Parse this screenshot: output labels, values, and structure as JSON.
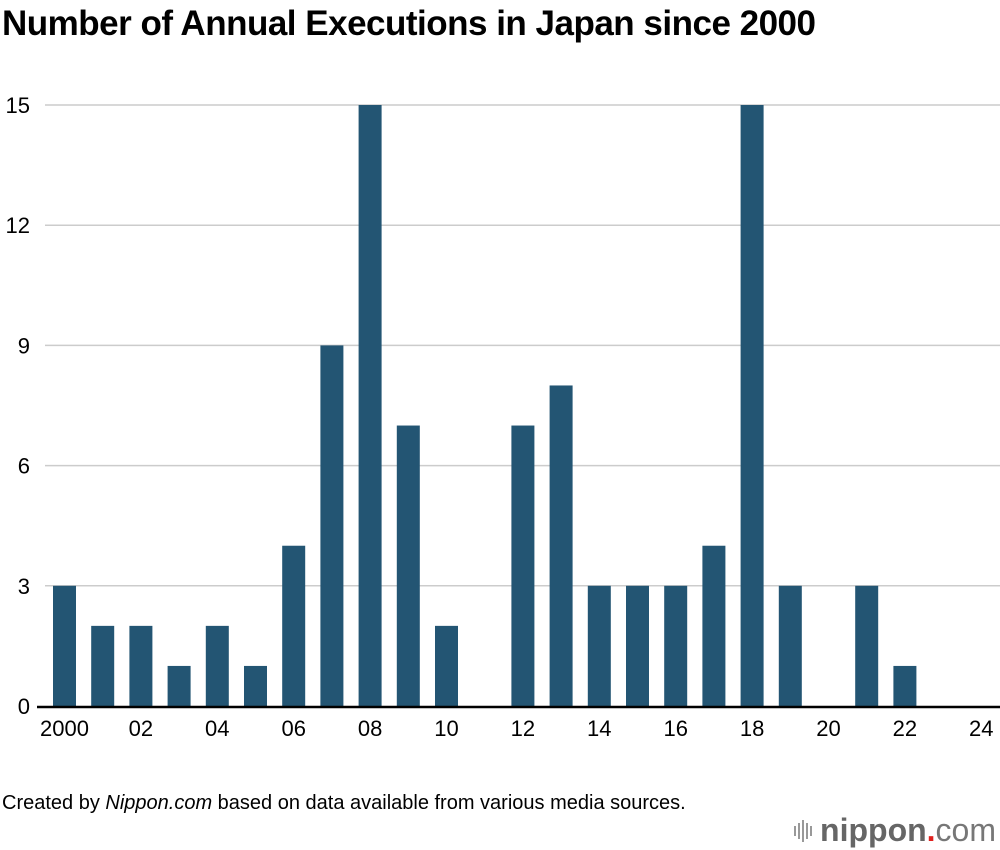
{
  "chart_data": {
    "type": "bar",
    "title": "Number of Annual Executions in Japan since 2000",
    "xlabel": "",
    "ylabel": "",
    "categories": [
      "2000",
      "2001",
      "2002",
      "2003",
      "2004",
      "2005",
      "2006",
      "2007",
      "2008",
      "2009",
      "2010",
      "2011",
      "2012",
      "2013",
      "2014",
      "2015",
      "2016",
      "2017",
      "2018",
      "2019",
      "2020",
      "2021",
      "2022",
      "2023",
      "2024"
    ],
    "values": [
      3,
      2,
      2,
      1,
      2,
      1,
      4,
      9,
      15,
      7,
      2,
      0,
      7,
      8,
      3,
      3,
      3,
      4,
      15,
      3,
      0,
      3,
      1,
      0,
      0
    ],
    "x_tick_labels": [
      "2000",
      "02",
      "04",
      "06",
      "08",
      "10",
      "12",
      "14",
      "16",
      "18",
      "20",
      "22",
      "24"
    ],
    "x_tick_indices": [
      0,
      2,
      4,
      6,
      8,
      10,
      12,
      14,
      16,
      18,
      20,
      22,
      24
    ],
    "y_ticks": [
      0,
      3,
      6,
      9,
      12,
      15
    ],
    "ylim": [
      0,
      15
    ],
    "grid": true,
    "legend": "none",
    "bar_color": "#235573",
    "grid_color": "#cccccc"
  },
  "footer": {
    "source_prefix": "Created by ",
    "source_italic": "Nippon.com",
    "source_suffix": " based on data available from various media sources.",
    "logo_brand": "nippon",
    "logo_dot": ".",
    "logo_com": "com",
    "logo_dot_color": "#e0201e"
  }
}
